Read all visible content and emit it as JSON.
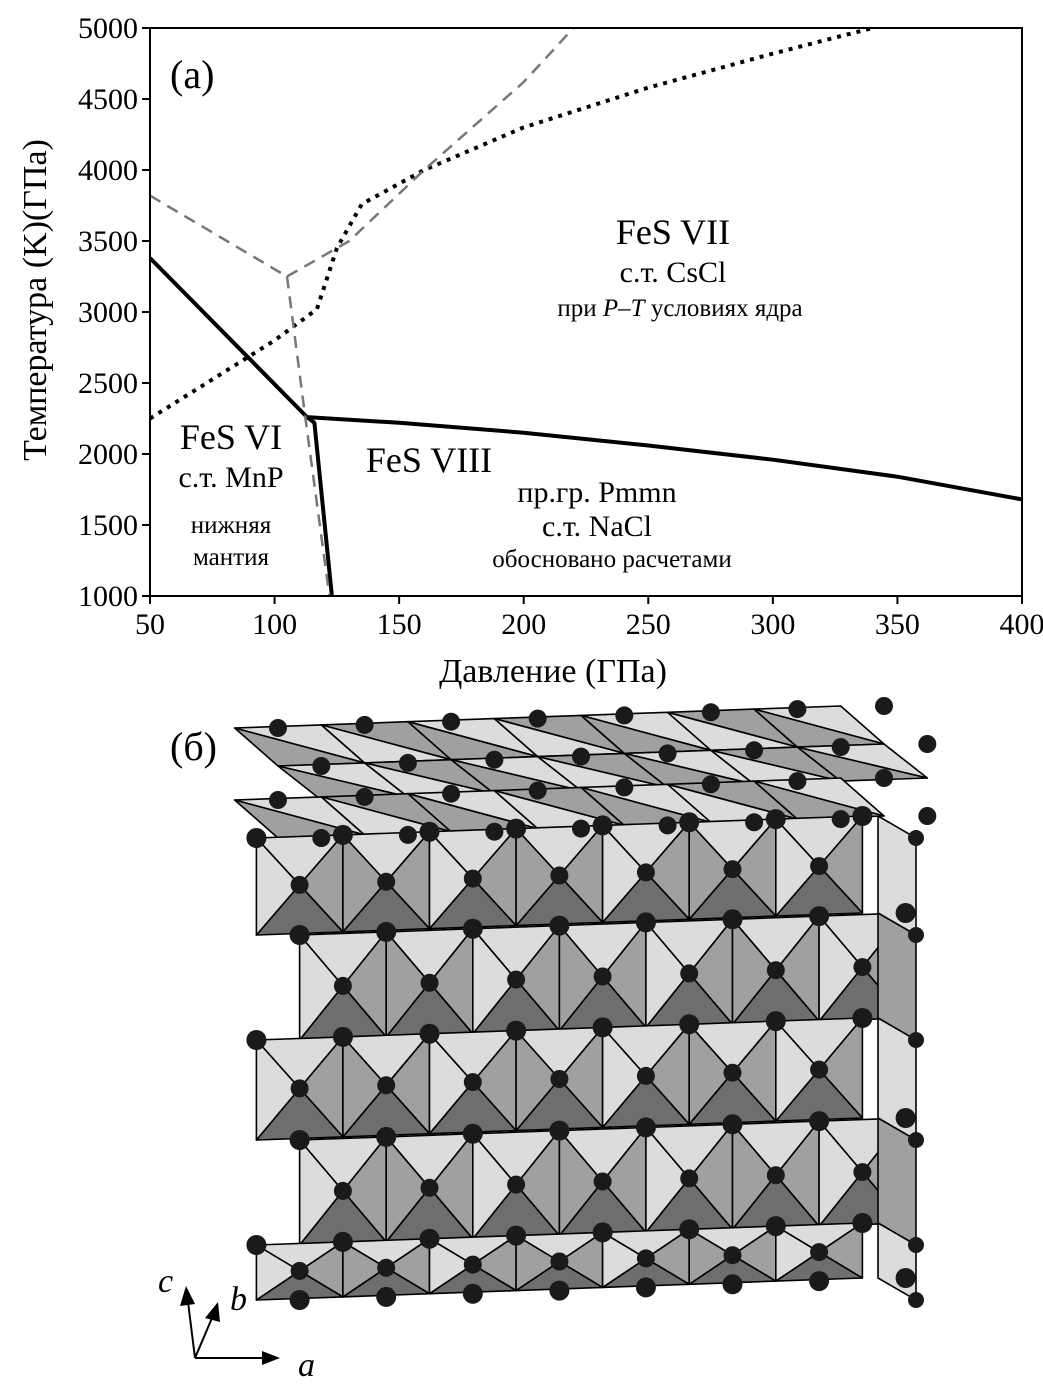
{
  "chart_data": {
    "type": "line",
    "panel_label": "(а)",
    "xlabel": "Давление (ГПа)",
    "ylabel": "Температура (K)(ГПа)",
    "xlim": [
      50,
      400
    ],
    "ylim": [
      1000,
      5000
    ],
    "xticks": [
      50,
      100,
      150,
      200,
      250,
      300,
      350,
      400
    ],
    "yticks": [
      1000,
      1500,
      2000,
      2500,
      3000,
      3500,
      4000,
      4500,
      5000
    ],
    "grid": false,
    "series": [
      {
        "style": "solid",
        "x": [
          50,
          113
        ],
        "y": [
          3380,
          2260
        ]
      },
      {
        "style": "solid",
        "x": [
          113,
          116,
          123
        ],
        "y": [
          2260,
          2220,
          1000
        ]
      },
      {
        "style": "solid",
        "x": [
          113,
          150,
          200,
          250,
          300,
          350,
          400
        ],
        "y": [
          2260,
          2220,
          2150,
          2060,
          1960,
          1840,
          1680
        ]
      },
      {
        "style": "dotted",
        "x": [
          50,
          100,
          117,
          125,
          135,
          160,
          200,
          250,
          300,
          340
        ],
        "y": [
          2250,
          2800,
          3020,
          3450,
          3760,
          4000,
          4300,
          4580,
          4820,
          5000
        ]
      },
      {
        "style": "dashed",
        "x": [
          50,
          105
        ],
        "y": [
          3820,
          3250
        ]
      },
      {
        "style": "dashed",
        "x": [
          105,
          112,
          122
        ],
        "y": [
          3250,
          2300,
          1000
        ]
      },
      {
        "style": "dashed",
        "x": [
          105,
          130,
          160,
          200,
          220
        ],
        "y": [
          3250,
          3500,
          4000,
          4620,
          5000
        ]
      }
    ],
    "annotations": {
      "fes7_name": "FeS VII",
      "fes7_type": "с.т. CsCl",
      "fes7_cond_pre": "при ",
      "fes7_cond_p": "P",
      "fes7_cond_dash": "–",
      "fes7_cond_t": "T",
      "fes7_cond_post": " условиях ядра",
      "fes6_name": "FeS VI",
      "fes6_type": "с.т. MnP",
      "fes6_note1": "нижняя",
      "fes6_note2": "мантия",
      "fes8_name": "FeS VIII",
      "fes8_group": "пр.гр. Pmmn",
      "fes8_type": "с.т. NaCl",
      "fes8_note": "обосновано расчетами"
    }
  },
  "structure": {
    "panel_label": "(б)",
    "axis_c": "c",
    "axis_b": "b",
    "axis_a": "a",
    "colors": {
      "light": "#dcdcdc",
      "mid": "#a0a0a0",
      "dark": "#6e6e6e",
      "atom": "#1a1a1a"
    }
  }
}
